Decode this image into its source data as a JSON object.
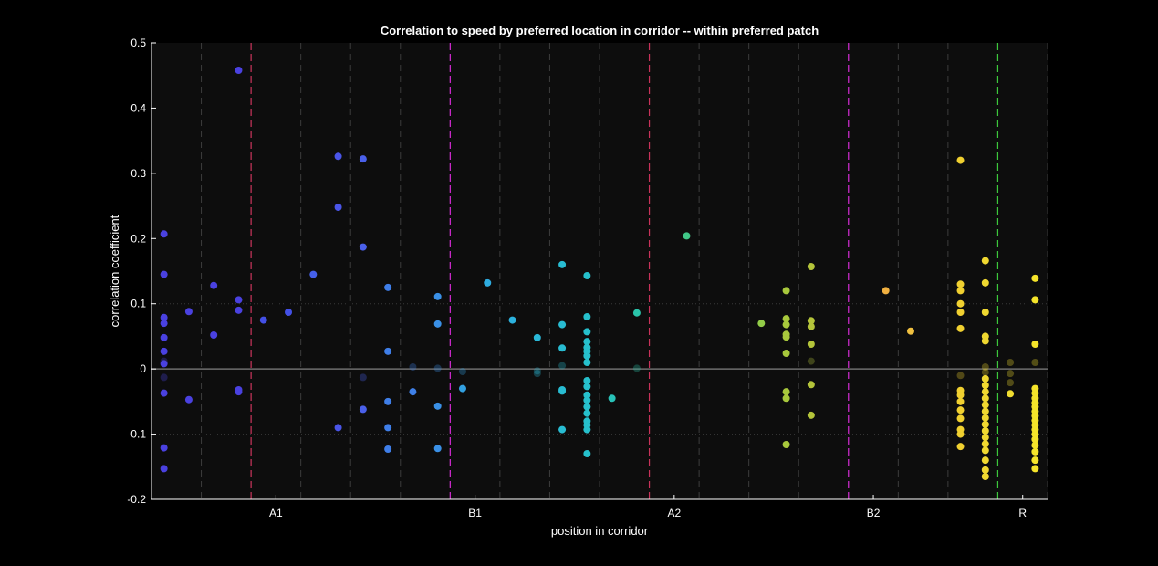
{
  "chart_data": {
    "type": "scatter",
    "title": "Correlation to speed by preferred location in corridor -- within preferred patch",
    "xlabel": "position in corridor",
    "ylabel": "correlation coefficient",
    "ylim": [
      -0.2,
      0.5
    ],
    "xlim": [
      0,
      18
    ],
    "yticks": [
      -0.2,
      -0.1,
      0,
      0.1,
      0.2,
      0.3,
      0.4,
      0.5
    ],
    "ytick_labels": [
      "-0.2",
      "-0.1",
      "0",
      "0.1",
      "0.2",
      "0.3",
      "0.4",
      "0.5"
    ],
    "xtick_positions": [
      2.5,
      6.5,
      10.5,
      14.5,
      17.5
    ],
    "xtick_labels": [
      "A1",
      "B1",
      "A2",
      "B2",
      "R"
    ],
    "grid_x": [
      1,
      2,
      3,
      4,
      5,
      6,
      7,
      8,
      9,
      10,
      11,
      12,
      13,
      14,
      15,
      16,
      17,
      18
    ],
    "reference_lines": [
      {
        "y": 0,
        "style": "solid",
        "color": "#6e6e6e"
      },
      {
        "y": 0.1,
        "style": "dotted",
        "color": "#3a3a3a"
      },
      {
        "y": -0.1,
        "style": "dotted",
        "color": "#3a3a3a"
      }
    ],
    "boundaries": [
      {
        "x": 2,
        "color": "#c8325a"
      },
      {
        "x": 6,
        "color": "#d228d2"
      },
      {
        "x": 10,
        "color": "#c8325a"
      },
      {
        "x": 14,
        "color": "#d228d2"
      },
      {
        "x": 17,
        "color": "#3cc83c"
      }
    ],
    "point_groups": [
      {
        "x": 0.25,
        "color": "#4a41e0",
        "y": [
          0.207,
          0.145,
          0.079,
          0.07,
          0.048,
          0.027,
          0.012,
          0.008,
          -0.013,
          -0.037,
          -0.121,
          -0.153
        ],
        "faded": [
          0.012,
          -0.013
        ]
      },
      {
        "x": 0.75,
        "color": "#4a41e0",
        "y": [
          0.088,
          -0.047
        ]
      },
      {
        "x": 1.25,
        "color": "#4a41e0",
        "y": [
          0.128,
          0.052
        ]
      },
      {
        "x": 1.75,
        "color": "#4a41e0",
        "y": [
          0.458,
          0.106,
          0.09,
          -0.032,
          -0.035
        ]
      },
      {
        "x": 2.25,
        "color": "#4350e6",
        "y": [
          0.075
        ]
      },
      {
        "x": 2.75,
        "color": "#4350e6",
        "y": [
          0.087
        ]
      },
      {
        "x": 3.25,
        "color": "#4560ea",
        "y": [
          0.145
        ]
      },
      {
        "x": 3.75,
        "color": "#4a55e8",
        "y": [
          0.326,
          0.248,
          -0.09
        ]
      },
      {
        "x": 4.25,
        "color": "#4a60ea",
        "y": [
          0.322,
          0.187,
          -0.013,
          -0.062
        ],
        "faded": [
          -0.013
        ]
      },
      {
        "x": 4.75,
        "color": "#3f7ee8",
        "y": [
          0.125,
          0.027,
          -0.05,
          -0.09,
          -0.123
        ]
      },
      {
        "x": 5.25,
        "color": "#3f80e8",
        "y": [
          0.003,
          -0.035
        ],
        "faded": [
          0.003
        ]
      },
      {
        "x": 5.75,
        "color": "#3a90e6",
        "y": [
          0.111,
          0.069,
          0.001,
          -0.057,
          -0.122
        ],
        "faded": [
          0.001
        ]
      },
      {
        "x": 6.25,
        "color": "#32a0e0",
        "y": [
          -0.004,
          -0.03
        ],
        "faded": [
          -0.004
        ]
      },
      {
        "x": 6.75,
        "color": "#2eace0",
        "y": [
          0.132
        ]
      },
      {
        "x": 7.25,
        "color": "#2cb2de",
        "y": [
          0.075
        ]
      },
      {
        "x": 7.75,
        "color": "#2ab8d8",
        "y": [
          0.048,
          -0.003,
          -0.007
        ],
        "faded": [
          -0.003,
          -0.007
        ]
      },
      {
        "x": 8.25,
        "color": "#28bcd2",
        "y": [
          0.16,
          0.068,
          0.032,
          0.005,
          -0.032,
          -0.034,
          -0.093
        ],
        "faded": [
          0.005
        ]
      },
      {
        "x": 8.75,
        "color": "#26c0cc",
        "y": [
          0.143,
          0.08,
          0.057,
          0.042,
          0.033,
          0.027,
          0.02,
          0.01,
          -0.018,
          -0.027,
          -0.04,
          -0.048,
          -0.058,
          -0.068,
          -0.08,
          -0.086,
          -0.093,
          -0.13
        ]
      },
      {
        "x": 9.25,
        "color": "#28c2b8",
        "y": [
          -0.045
        ]
      },
      {
        "x": 9.75,
        "color": "#2ac4aa",
        "y": [
          0.086,
          0.001
        ],
        "faded": [
          0.001
        ]
      },
      {
        "x": 10.75,
        "color": "#40c888",
        "y": [
          0.204
        ]
      },
      {
        "x": 12.25,
        "color": "#92cc48",
        "y": [
          0.07
        ]
      },
      {
        "x": 12.75,
        "color": "#a8c83c",
        "y": [
          0.12,
          0.077,
          0.068,
          0.053,
          0.049,
          0.024,
          -0.035,
          -0.045,
          -0.116
        ]
      },
      {
        "x": 13.25,
        "color": "#b4c43a",
        "y": [
          0.157,
          0.074,
          0.065,
          0.038,
          0.012,
          -0.024,
          -0.071
        ],
        "faded": [
          0.012
        ]
      },
      {
        "x": 14.75,
        "color": "#f0b040",
        "y": [
          0.12
        ]
      },
      {
        "x": 15.25,
        "color": "#f0c040",
        "y": [
          0.058
        ]
      },
      {
        "x": 16.25,
        "color": "#f0d030",
        "y": [
          0.32,
          0.13,
          0.12,
          0.1,
          0.087,
          0.062,
          -0.01,
          -0.033,
          -0.04,
          -0.05,
          -0.063,
          -0.076,
          -0.093,
          -0.1,
          -0.119
        ],
        "faded": [
          -0.01
        ]
      },
      {
        "x": 16.75,
        "color": "#f0d830",
        "y": [
          0.166,
          0.132,
          0.087,
          0.05,
          0.043,
          0.003,
          -0.005,
          -0.015,
          -0.025,
          -0.035,
          -0.045,
          -0.055,
          -0.065,
          -0.075,
          -0.085,
          -0.095,
          -0.105,
          -0.115,
          -0.125,
          -0.14,
          -0.155,
          -0.165
        ],
        "faded": [
          0.003,
          -0.005
        ]
      },
      {
        "x": 17.25,
        "color": "#f0dc30",
        "y": [
          0.01,
          -0.007,
          -0.021,
          -0.038
        ],
        "faded": [
          0.01,
          -0.007,
          -0.021
        ]
      },
      {
        "x": 17.75,
        "color": "#f5e42a",
        "y": [
          0.139,
          0.106,
          0.038,
          0.01,
          -0.03,
          -0.037,
          -0.045,
          -0.052,
          -0.058,
          -0.065,
          -0.072,
          -0.079,
          -0.086,
          -0.093,
          -0.1,
          -0.108,
          -0.117,
          -0.127,
          -0.14,
          -0.153
        ],
        "faded": [
          0.01
        ]
      }
    ]
  }
}
